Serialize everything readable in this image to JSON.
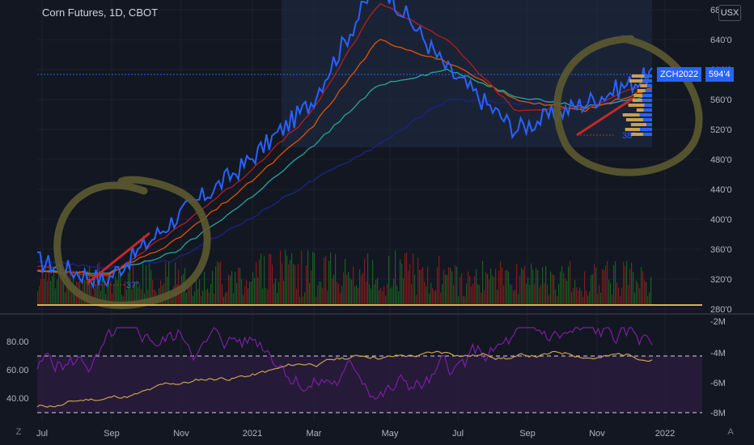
{
  "header": {
    "title": "Corn Futures, 1D, CBOT",
    "currency_button": "USX"
  },
  "price_scale": {
    "labels": [
      "680'0",
      "640'0",
      "600'0",
      "560'0",
      "520'0",
      "480'0",
      "440'0",
      "400'0",
      "360'0",
      "320'0",
      "280'0"
    ]
  },
  "last_price": {
    "symbol": "ZCH2022",
    "price": "594'4"
  },
  "time_axis": {
    "labels": [
      "Jul",
      "Sep",
      "Nov",
      "2021",
      "Mar",
      "May",
      "Jul",
      "Sep",
      "Nov",
      "2022"
    ]
  },
  "indicator_left_scale": {
    "labels": [
      "80.00",
      "60.00",
      "40.00"
    ]
  },
  "indicator_right_scale": {
    "labels": [
      "-2M",
      "-4M",
      "-6M",
      "-8M"
    ]
  },
  "annotations": {
    "angle_left": "37°",
    "angle_right": "38°"
  },
  "controls": {
    "zoom_button": "Z",
    "auto_button": "A"
  },
  "colors": {
    "background": "#131722",
    "price": "#2962ff",
    "ma_red": "#b71c1c",
    "ma_orange": "#e65100",
    "ma_teal": "#26a69a",
    "ma_navy": "#1a237e",
    "rsi": "#7b1fa2",
    "obv": "#c8a050",
    "highlight": "#6b6b3a"
  },
  "chart_data": {
    "type": "line",
    "title": "Corn Futures, 1D, CBOT",
    "x": [
      "Jul",
      "Sep",
      "Nov",
      "2021",
      "Mar",
      "May",
      "Jul",
      "Sep",
      "Nov",
      "2022"
    ],
    "ylim": [
      280,
      680
    ],
    "series": [
      {
        "name": "price",
        "values": [
          345,
          318,
          400,
          470,
          555,
          720,
          600,
          520,
          555,
          594
        ]
      },
      {
        "name": "ma_fast",
        "values": [
          338,
          322,
          385,
          455,
          540,
          690,
          640,
          545,
          548,
          585
        ]
      },
      {
        "name": "ma_mid",
        "values": [
          332,
          325,
          370,
          440,
          520,
          640,
          610,
          560,
          545,
          575
        ]
      },
      {
        "name": "ma_slow",
        "values": [
          330,
          328,
          355,
          420,
          495,
          580,
          600,
          565,
          550,
          565
        ]
      },
      {
        "name": "ma_long",
        "values": [
          345,
          335,
          345,
          395,
          450,
          500,
          560,
          555,
          555,
          560
        ]
      }
    ],
    "rsi_ylim": [
      30,
      90
    ],
    "rsi_levels": [
      70,
      30
    ],
    "obv_ylim": [
      -8,
      -2
    ]
  }
}
